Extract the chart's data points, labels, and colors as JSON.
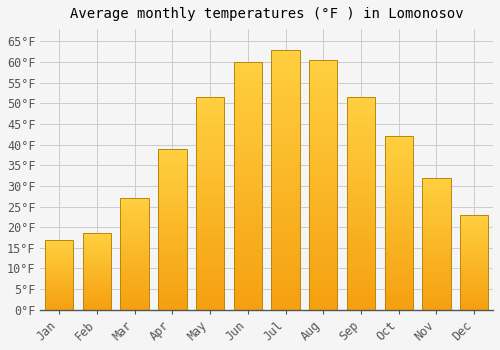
{
  "title": "Average monthly temperatures (°F ) in Lomonosov",
  "months": [
    "Jan",
    "Feb",
    "Mar",
    "Apr",
    "May",
    "Jun",
    "Jul",
    "Aug",
    "Sep",
    "Oct",
    "Nov",
    "Dec"
  ],
  "values": [
    17,
    18.5,
    27,
    39,
    51.5,
    60,
    63,
    60.5,
    51.5,
    42,
    32,
    23
  ],
  "bar_color": "#FFA500",
  "bar_edge_color": "#CC8800",
  "ylim": [
    0,
    68
  ],
  "yticks": [
    0,
    5,
    10,
    15,
    20,
    25,
    30,
    35,
    40,
    45,
    50,
    55,
    60,
    65
  ],
  "ytick_labels": [
    "0°F",
    "5°F",
    "10°F",
    "15°F",
    "20°F",
    "25°F",
    "30°F",
    "35°F",
    "40°F",
    "45°F",
    "50°F",
    "55°F",
    "60°F",
    "65°F"
  ],
  "background_color": "#f5f5f5",
  "grid_color": "#cccccc",
  "title_fontsize": 10,
  "tick_fontsize": 8.5,
  "font_family": "monospace",
  "bar_width": 0.75
}
